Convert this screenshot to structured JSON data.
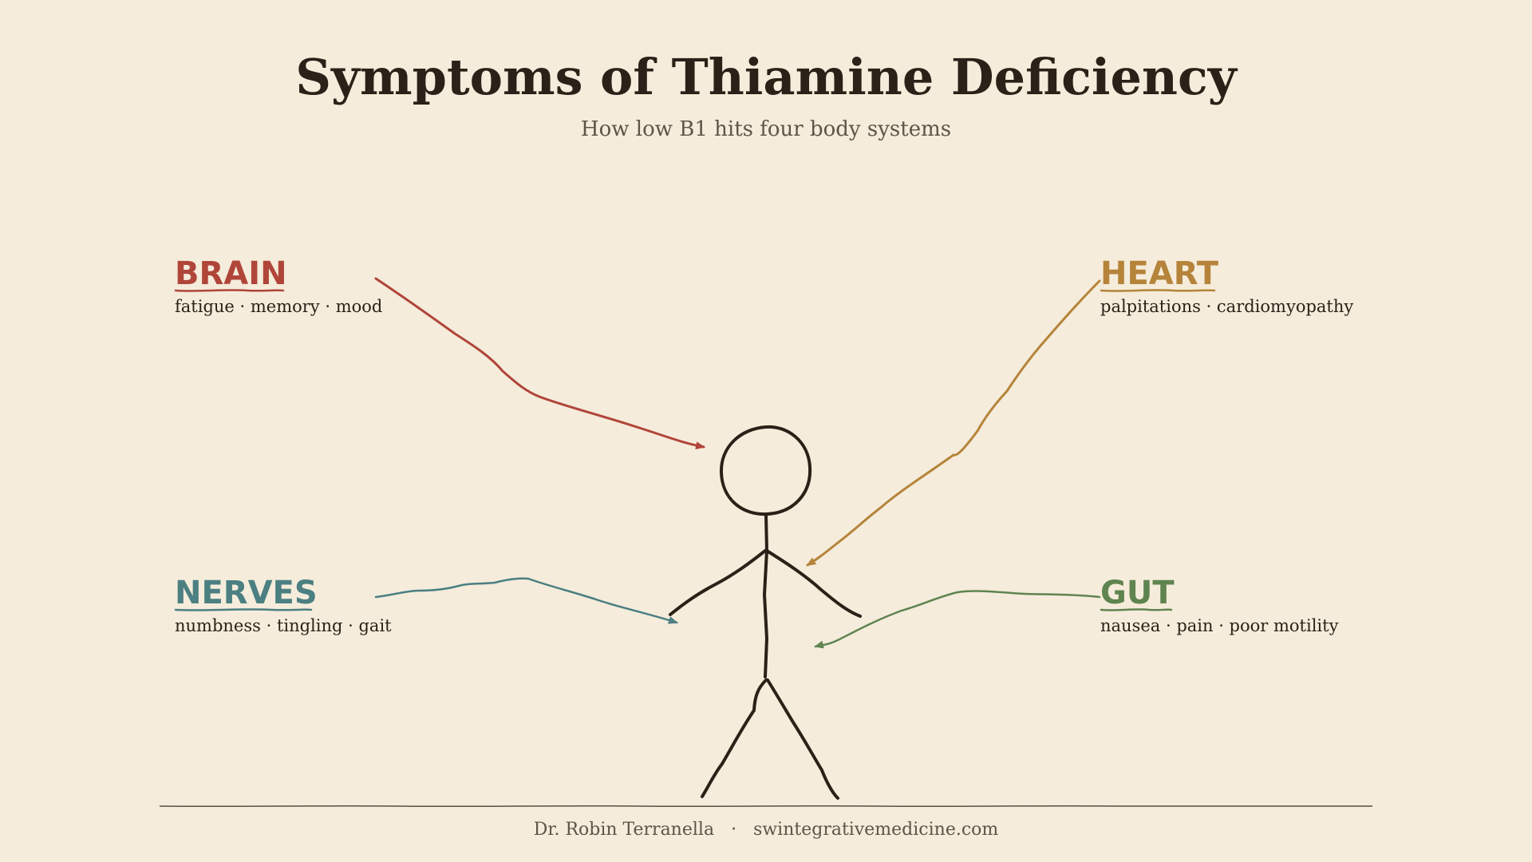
{
  "title": "Symptoms of Thiamine Deficiency",
  "subtitle": "How low B1 hits four body systems",
  "colors": {
    "background": "#f5ecdb",
    "ink": "#2b2118",
    "muted": "#5f5447",
    "brain": "#b0453a",
    "heart": "#b5843a",
    "nerves": "#4b7f82",
    "gut": "#5f8450"
  },
  "systems": {
    "brain": {
      "label": "BRAIN",
      "symptoms": "fatigue · memory · mood"
    },
    "heart": {
      "label": "HEART",
      "symptoms": "palpitations · cardiomyopathy"
    },
    "nerves": {
      "label": "NERVES",
      "symptoms": "numbness · tingling · gait"
    },
    "gut": {
      "label": "GUT",
      "symptoms": "nausea · pain · poor motility"
    }
  },
  "footer": {
    "author": "Dr. Robin Terranella",
    "separator": "·",
    "website": "swintegrativemedicine.com"
  }
}
